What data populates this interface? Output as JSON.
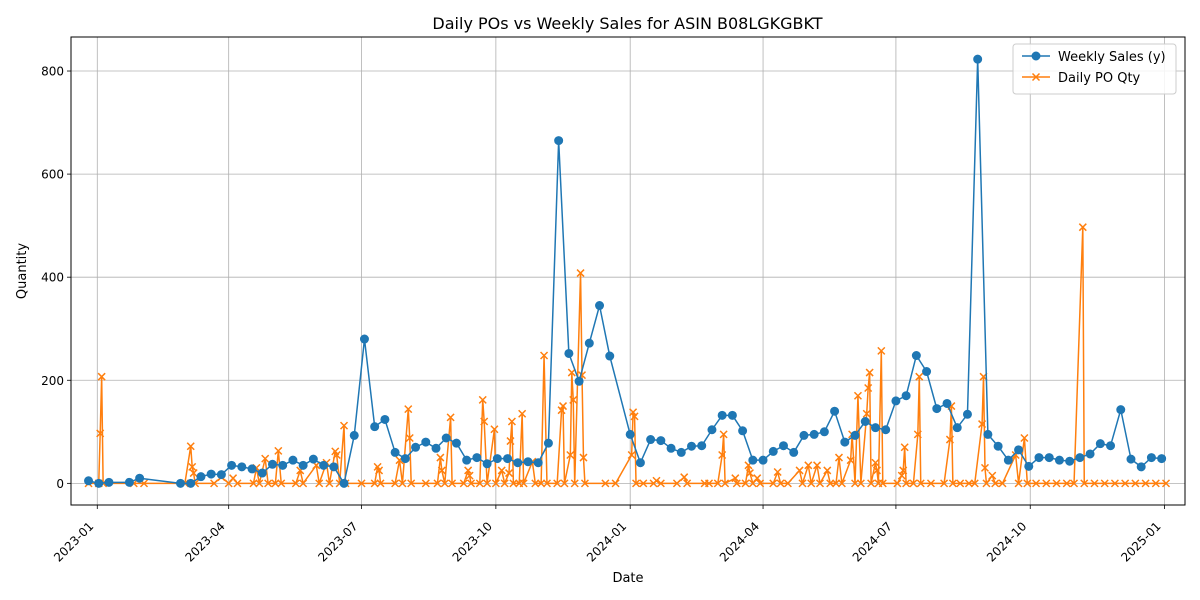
{
  "chart_data": {
    "type": "line",
    "title": "Daily POs vs Weekly Sales for ASIN B08LGKGBKT",
    "xlabel": "Date",
    "ylabel": "Quantity",
    "x_ticks": [
      "2023-01",
      "2023-04",
      "2023-07",
      "2023-10",
      "2024-01",
      "2024-04",
      "2024-07",
      "2024-10",
      "2025-01"
    ],
    "y_ticks": [
      0,
      200,
      400,
      600,
      800
    ],
    "xlim": [
      "2022-12-14",
      "2025-01-15"
    ],
    "ylim": [
      -42,
      866
    ],
    "grid": true,
    "legend_position": "top-right",
    "series": [
      {
        "name": "Weekly Sales (y)",
        "color": "#1f77b4",
        "marker": "circle",
        "points": [
          [
            "2022-12-26",
            5
          ],
          [
            "2023-01-02",
            0
          ],
          [
            "2023-01-09",
            2
          ],
          [
            "2023-01-23",
            2
          ],
          [
            "2023-01-30",
            10
          ],
          [
            "2023-02-27",
            0
          ],
          [
            "2023-03-06",
            0
          ],
          [
            "2023-03-13",
            13
          ],
          [
            "2023-03-20",
            18
          ],
          [
            "2023-03-27",
            17
          ],
          [
            "2023-04-03",
            35
          ],
          [
            "2023-04-10",
            32
          ],
          [
            "2023-04-17",
            28
          ],
          [
            "2023-04-24",
            20
          ],
          [
            "2023-05-01",
            37
          ],
          [
            "2023-05-08",
            35
          ],
          [
            "2023-05-15",
            45
          ],
          [
            "2023-05-22",
            35
          ],
          [
            "2023-05-29",
            47
          ],
          [
            "2023-06-05",
            35
          ],
          [
            "2023-06-12",
            32
          ],
          [
            "2023-06-19",
            0
          ],
          [
            "2023-06-26",
            93
          ],
          [
            "2023-07-03",
            280
          ],
          [
            "2023-07-10",
            110
          ],
          [
            "2023-07-17",
            124
          ],
          [
            "2023-07-24",
            60
          ],
          [
            "2023-07-31",
            48
          ],
          [
            "2023-08-07",
            70
          ],
          [
            "2023-08-14",
            80
          ],
          [
            "2023-08-21",
            68
          ],
          [
            "2023-08-28",
            88
          ],
          [
            "2023-09-04",
            78
          ],
          [
            "2023-09-11",
            45
          ],
          [
            "2023-09-18",
            50
          ],
          [
            "2023-09-25",
            38
          ],
          [
            "2023-10-02",
            48
          ],
          [
            "2023-10-09",
            48
          ],
          [
            "2023-10-16",
            40
          ],
          [
            "2023-10-23",
            42
          ],
          [
            "2023-10-30",
            40
          ],
          [
            "2023-11-06",
            78
          ],
          [
            "2023-11-13",
            665
          ],
          [
            "2023-11-20",
            252
          ],
          [
            "2023-11-27",
            198
          ],
          [
            "2023-12-04",
            272
          ],
          [
            "2023-12-11",
            345
          ],
          [
            "2023-12-18",
            247
          ],
          [
            "2024-01-01",
            95
          ],
          [
            "2024-01-08",
            40
          ],
          [
            "2024-01-15",
            85
          ],
          [
            "2024-01-22",
            83
          ],
          [
            "2024-01-29",
            68
          ],
          [
            "2024-02-05",
            60
          ],
          [
            "2024-02-12",
            72
          ],
          [
            "2024-02-19",
            73
          ],
          [
            "2024-02-26",
            104
          ],
          [
            "2024-03-04",
            132
          ],
          [
            "2024-03-11",
            132
          ],
          [
            "2024-03-18",
            102
          ],
          [
            "2024-03-25",
            45
          ],
          [
            "2024-04-01",
            45
          ],
          [
            "2024-04-08",
            62
          ],
          [
            "2024-04-15",
            73
          ],
          [
            "2024-04-22",
            60
          ],
          [
            "2024-04-29",
            93
          ],
          [
            "2024-05-06",
            95
          ],
          [
            "2024-05-13",
            100
          ],
          [
            "2024-05-20",
            140
          ],
          [
            "2024-05-27",
            80
          ],
          [
            "2024-06-03",
            93
          ],
          [
            "2024-06-10",
            120
          ],
          [
            "2024-06-17",
            108
          ],
          [
            "2024-06-24",
            104
          ],
          [
            "2024-07-01",
            160
          ],
          [
            "2024-07-08",
            170
          ],
          [
            "2024-07-15",
            248
          ],
          [
            "2024-07-22",
            217
          ],
          [
            "2024-07-29",
            145
          ],
          [
            "2024-08-05",
            155
          ],
          [
            "2024-08-12",
            108
          ],
          [
            "2024-08-19",
            134
          ],
          [
            "2024-08-26",
            823
          ],
          [
            "2024-09-02",
            95
          ],
          [
            "2024-09-09",
            72
          ],
          [
            "2024-09-16",
            45
          ],
          [
            "2024-09-23",
            65
          ],
          [
            "2024-09-30",
            33
          ],
          [
            "2024-10-07",
            50
          ],
          [
            "2024-10-14",
            50
          ],
          [
            "2024-10-21",
            45
          ],
          [
            "2024-10-28",
            43
          ],
          [
            "2024-11-04",
            50
          ],
          [
            "2024-11-11",
            57
          ],
          [
            "2024-11-18",
            77
          ],
          [
            "2024-11-25",
            73
          ],
          [
            "2024-12-02",
            143
          ],
          [
            "2024-12-09",
            47
          ],
          [
            "2024-12-16",
            32
          ],
          [
            "2024-12-23",
            50
          ],
          [
            "2024-12-30",
            48
          ]
        ]
      },
      {
        "name": "Daily PO Qty",
        "color": "#ff7f0e",
        "marker": "x",
        "points": [
          [
            "2022-12-26",
            0
          ],
          [
            "2023-01-02",
            0
          ],
          [
            "2023-01-03",
            97
          ],
          [
            "2023-01-04",
            207
          ],
          [
            "2023-01-05",
            0
          ],
          [
            "2023-01-26",
            0
          ],
          [
            "2023-02-02",
            0
          ],
          [
            "2023-03-02",
            0
          ],
          [
            "2023-03-06",
            72
          ],
          [
            "2023-03-07",
            32
          ],
          [
            "2023-03-08",
            20
          ],
          [
            "2023-03-09",
            0
          ],
          [
            "2023-03-22",
            0
          ],
          [
            "2023-03-27",
            12
          ],
          [
            "2023-04-01",
            0
          ],
          [
            "2023-04-04",
            10
          ],
          [
            "2023-04-07",
            0
          ],
          [
            "2023-04-18",
            0
          ],
          [
            "2023-04-20",
            30
          ],
          [
            "2023-04-22",
            0
          ],
          [
            "2023-04-26",
            48
          ],
          [
            "2023-04-28",
            0
          ],
          [
            "2023-05-03",
            0
          ],
          [
            "2023-05-05",
            63
          ],
          [
            "2023-05-07",
            0
          ],
          [
            "2023-05-17",
            0
          ],
          [
            "2023-05-20",
            25
          ],
          [
            "2023-05-22",
            0
          ],
          [
            "2023-05-31",
            35
          ],
          [
            "2023-06-02",
            0
          ],
          [
            "2023-06-07",
            40
          ],
          [
            "2023-06-09",
            0
          ],
          [
            "2023-06-13",
            62
          ],
          [
            "2023-06-14",
            55
          ],
          [
            "2023-06-16",
            0
          ],
          [
            "2023-06-19",
            112
          ],
          [
            "2023-06-20",
            0
          ],
          [
            "2023-07-01",
            0
          ],
          [
            "2023-07-10",
            0
          ],
          [
            "2023-07-12",
            32
          ],
          [
            "2023-07-13",
            25
          ],
          [
            "2023-07-14",
            0
          ],
          [
            "2023-07-24",
            0
          ],
          [
            "2023-07-27",
            45
          ],
          [
            "2023-07-29",
            0
          ],
          [
            "2023-08-02",
            144
          ],
          [
            "2023-08-03",
            88
          ],
          [
            "2023-08-04",
            0
          ],
          [
            "2023-08-14",
            0
          ],
          [
            "2023-08-22",
            0
          ],
          [
            "2023-08-24",
            50
          ],
          [
            "2023-08-25",
            25
          ],
          [
            "2023-08-27",
            0
          ],
          [
            "2023-08-31",
            128
          ],
          [
            "2023-09-01",
            0
          ],
          [
            "2023-09-09",
            0
          ],
          [
            "2023-09-12",
            25
          ],
          [
            "2023-09-13",
            15
          ],
          [
            "2023-09-14",
            0
          ],
          [
            "2023-09-20",
            0
          ],
          [
            "2023-09-22",
            162
          ],
          [
            "2023-09-23",
            120
          ],
          [
            "2023-09-25",
            0
          ],
          [
            "2023-09-30",
            105
          ],
          [
            "2023-10-01",
            0
          ],
          [
            "2023-10-05",
            25
          ],
          [
            "2023-10-07",
            0
          ],
          [
            "2023-10-10",
            20
          ],
          [
            "2023-10-11",
            82
          ],
          [
            "2023-10-12",
            120
          ],
          [
            "2023-10-13",
            0
          ],
          [
            "2023-10-17",
            0
          ],
          [
            "2023-10-19",
            135
          ],
          [
            "2023-10-20",
            0
          ],
          [
            "2023-10-26",
            42
          ],
          [
            "2023-10-28",
            0
          ],
          [
            "2023-11-01",
            0
          ],
          [
            "2023-11-03",
            248
          ],
          [
            "2023-11-05",
            0
          ],
          [
            "2023-11-12",
            0
          ],
          [
            "2023-11-15",
            142
          ],
          [
            "2023-11-16",
            150
          ],
          [
            "2023-11-17",
            0
          ],
          [
            "2023-11-21",
            55
          ],
          [
            "2023-11-22",
            215
          ],
          [
            "2023-11-23",
            162
          ],
          [
            "2023-11-24",
            0
          ],
          [
            "2023-11-28",
            408
          ],
          [
            "2023-11-29",
            210
          ],
          [
            "2023-11-30",
            50
          ],
          [
            "2023-12-01",
            0
          ],
          [
            "2023-12-15",
            0
          ],
          [
            "2023-12-22",
            0
          ],
          [
            "2024-01-02",
            55
          ],
          [
            "2024-01-03",
            138
          ],
          [
            "2024-01-04",
            130
          ],
          [
            "2024-01-05",
            0
          ],
          [
            "2024-01-10",
            0
          ],
          [
            "2024-01-17",
            0
          ],
          [
            "2024-01-19",
            5
          ],
          [
            "2024-01-22",
            0
          ],
          [
            "2024-02-02",
            0
          ],
          [
            "2024-02-07",
            12
          ],
          [
            "2024-02-09",
            0
          ],
          [
            "2024-02-21",
            0
          ],
          [
            "2024-02-24",
            0
          ],
          [
            "2024-03-01",
            0
          ],
          [
            "2024-03-04",
            55
          ],
          [
            "2024-03-05",
            95
          ],
          [
            "2024-03-06",
            0
          ],
          [
            "2024-03-13",
            10
          ],
          [
            "2024-03-14",
            0
          ],
          [
            "2024-03-20",
            0
          ],
          [
            "2024-03-22",
            35
          ],
          [
            "2024-03-23",
            20
          ],
          [
            "2024-03-25",
            0
          ],
          [
            "2024-03-28",
            10
          ],
          [
            "2024-03-30",
            0
          ],
          [
            "2024-04-08",
            0
          ],
          [
            "2024-04-11",
            22
          ],
          [
            "2024-04-13",
            0
          ],
          [
            "2024-04-18",
            0
          ],
          [
            "2024-04-26",
            25
          ],
          [
            "2024-04-28",
            0
          ],
          [
            "2024-05-02",
            35
          ],
          [
            "2024-05-04",
            0
          ],
          [
            "2024-05-08",
            35
          ],
          [
            "2024-05-10",
            0
          ],
          [
            "2024-05-15",
            25
          ],
          [
            "2024-05-17",
            0
          ],
          [
            "2024-05-21",
            0
          ],
          [
            "2024-05-23",
            50
          ],
          [
            "2024-05-25",
            0
          ],
          [
            "2024-05-31",
            45
          ],
          [
            "2024-06-01",
            95
          ],
          [
            "2024-06-03",
            0
          ],
          [
            "2024-06-05",
            170
          ],
          [
            "2024-06-07",
            0
          ],
          [
            "2024-06-11",
            135
          ],
          [
            "2024-06-12",
            185
          ],
          [
            "2024-06-13",
            215
          ],
          [
            "2024-06-14",
            0
          ],
          [
            "2024-06-17",
            40
          ],
          [
            "2024-06-18",
            25
          ],
          [
            "2024-06-19",
            0
          ],
          [
            "2024-06-21",
            257
          ],
          [
            "2024-06-22",
            0
          ],
          [
            "2024-07-02",
            0
          ],
          [
            "2024-07-05",
            15
          ],
          [
            "2024-07-06",
            25
          ],
          [
            "2024-07-07",
            70
          ],
          [
            "2024-07-08",
            0
          ],
          [
            "2024-07-13",
            0
          ],
          [
            "2024-07-16",
            95
          ],
          [
            "2024-07-17",
            207
          ],
          [
            "2024-07-18",
            0
          ],
          [
            "2024-07-25",
            0
          ],
          [
            "2024-08-03",
            0
          ],
          [
            "2024-08-07",
            85
          ],
          [
            "2024-08-08",
            150
          ],
          [
            "2024-08-09",
            0
          ],
          [
            "2024-08-14",
            0
          ],
          [
            "2024-08-20",
            0
          ],
          [
            "2024-08-24",
            0
          ],
          [
            "2024-08-29",
            115
          ],
          [
            "2024-08-30",
            207
          ],
          [
            "2024-08-31",
            30
          ],
          [
            "2024-09-01",
            0
          ],
          [
            "2024-09-05",
            15
          ],
          [
            "2024-09-07",
            0
          ],
          [
            "2024-09-12",
            0
          ],
          [
            "2024-09-21",
            55
          ],
          [
            "2024-09-23",
            0
          ],
          [
            "2024-09-27",
            88
          ],
          [
            "2024-09-29",
            0
          ],
          [
            "2024-10-05",
            0
          ],
          [
            "2024-10-12",
            0
          ],
          [
            "2024-10-19",
            0
          ],
          [
            "2024-10-26",
            0
          ],
          [
            "2024-10-31",
            0
          ],
          [
            "2024-11-06",
            497
          ],
          [
            "2024-11-07",
            0
          ],
          [
            "2024-11-14",
            0
          ],
          [
            "2024-11-21",
            0
          ],
          [
            "2024-11-28",
            0
          ],
          [
            "2024-12-05",
            0
          ],
          [
            "2024-12-12",
            0
          ],
          [
            "2024-12-19",
            0
          ],
          [
            "2024-12-26",
            0
          ],
          [
            "2025-01-02",
            0
          ]
        ]
      }
    ]
  }
}
